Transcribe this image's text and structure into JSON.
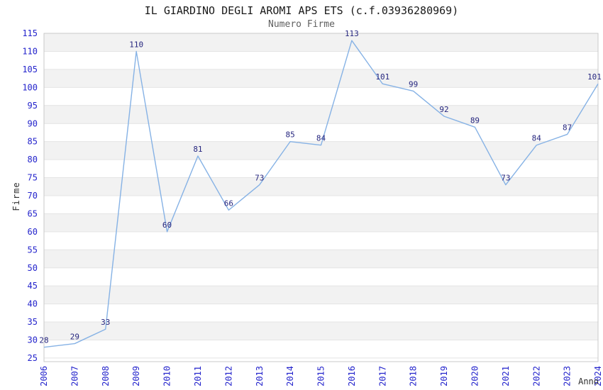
{
  "chart_data": {
    "type": "line",
    "title": "IL GIARDINO DEGLI AROMI APS ETS (c.f.03936280969)",
    "subtitle": "Numero Firme",
    "xlabel": "Anno",
    "ylabel": "Firme",
    "categories": [
      "2006",
      "2007",
      "2008",
      "2009",
      "2010",
      "2011",
      "2012",
      "2013",
      "2014",
      "2015",
      "2016",
      "2017",
      "2018",
      "2019",
      "2020",
      "2021",
      "2022",
      "2023",
      "2024"
    ],
    "values": [
      28,
      29,
      33,
      110,
      60,
      81,
      66,
      73,
      85,
      84,
      113,
      101,
      99,
      92,
      89,
      73,
      84,
      87,
      101
    ],
    "data_labels_shown": true,
    "ylim": [
      24,
      115
    ],
    "ytick_min": 25,
    "ytick_max": 115,
    "ytick_step": 5,
    "grid": "horizontal-bands",
    "legend": "none"
  },
  "colors": {
    "series_line": "#86b2e5",
    "data_label": "#26267f",
    "tick_label": "#2424cc",
    "band_gray": "#f2f2f2",
    "grid_line": "#e4e4e4",
    "plot_border": "#c9c9c9",
    "plot_background": "#ffffff",
    "title_text": "#1a1a1a",
    "subtitle_text": "#5f5f5f",
    "axis_title_text": "#2e2e2e"
  }
}
